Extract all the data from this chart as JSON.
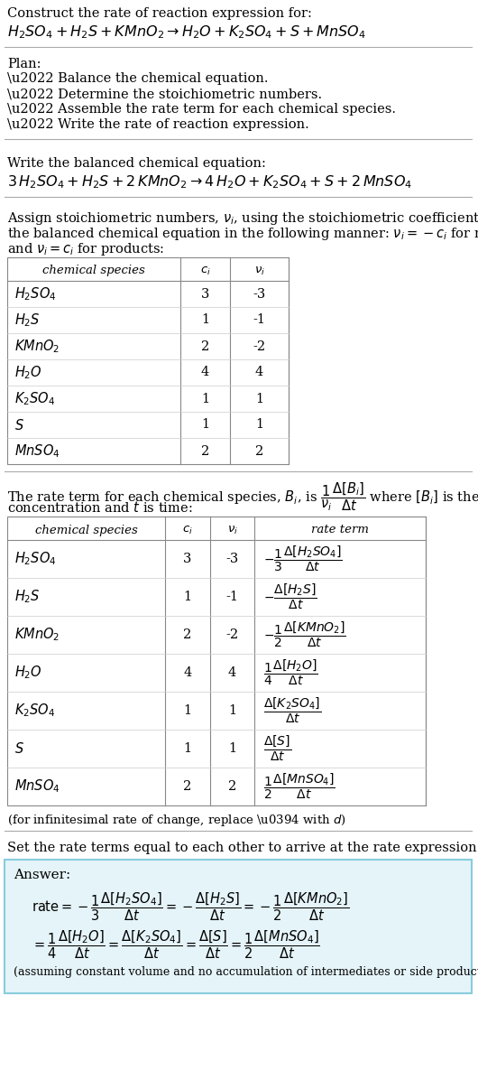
{
  "bg_color": "#ffffff",
  "font_family": "DejaVu Serif",
  "sections": {
    "title1": "Construct the rate of reaction expression for:",
    "eq_unbalanced": "$H_2SO_4 + H_2S + KMnO_2 \\rightarrow H_2O + K_2SO_4 + S + MnSO_4$",
    "plan_header": "Plan:",
    "plan_items": [
      "\\u2022 Balance the chemical equation.",
      "\\u2022 Determine the stoichiometric numbers.",
      "\\u2022 Assemble the rate term for each chemical species.",
      "\\u2022 Write the rate of reaction expression."
    ],
    "balanced_header": "Write the balanced chemical equation:",
    "eq_balanced": "$3\\,H_2SO_4 + H_2S + 2\\,KMnO_2 \\rightarrow 4\\,H_2O + K_2SO_4 + S + 2\\,MnSO_4$",
    "assign_text_line1": "Assign stoichiometric numbers, $\\nu_i$, using the stoichiometric coefficients, $c_i$, from",
    "assign_text_line2": "the balanced chemical equation in the following manner: $\\nu_i = -c_i$ for reactants",
    "assign_text_line3": "and $\\nu_i = c_i$ for products:",
    "rate_text_line1": "The rate term for each chemical species, $B_i$, is $\\dfrac{1}{\\nu_i}\\dfrac{\\Delta[B_i]}{\\Delta t}$ where $[B_i]$ is the amount",
    "rate_text_line2": "concentration and $t$ is time:",
    "infinitesimal": "(for infinitesimal rate of change, replace \\u0394 with $d$)",
    "set_header": "Set the rate terms equal to each other to arrive at the rate expression:",
    "answer_label": "Answer:",
    "answer_footnote": "(assuming constant volume and no accumulation of intermediates or side products)"
  },
  "table1": {
    "headers": [
      "chemical species",
      "$c_i$",
      "$\\nu_i$"
    ],
    "col_species": [
      "$H_2SO_4$",
      "$H_2S$",
      "$KMnO_2$",
      "$H_2O$",
      "$K_2SO_4$",
      "$S$",
      "$MnSO_4$"
    ],
    "col_ci": [
      "3",
      "1",
      "2",
      "4",
      "1",
      "1",
      "2"
    ],
    "col_ni": [
      "-3",
      "-1",
      "-2",
      "4",
      "1",
      "1",
      "2"
    ]
  },
  "table2": {
    "headers": [
      "chemical species",
      "$c_i$",
      "$\\nu_i$",
      "rate term"
    ],
    "col_species": [
      "$H_2SO_4$",
      "$H_2S$",
      "$KMnO_2$",
      "$H_2O$",
      "$K_2SO_4$",
      "$S$",
      "$MnSO_4$"
    ],
    "col_ci": [
      "3",
      "1",
      "2",
      "4",
      "1",
      "1",
      "2"
    ],
    "col_ni": [
      "-3",
      "-1",
      "-2",
      "4",
      "1",
      "1",
      "2"
    ],
    "col_rate": [
      "$-\\dfrac{1}{3}\\dfrac{\\Delta[H_2SO_4]}{\\Delta t}$",
      "$-\\dfrac{\\Delta[H_2S]}{\\Delta t}$",
      "$-\\dfrac{1}{2}\\dfrac{\\Delta[KMnO_2]}{\\Delta t}$",
      "$\\dfrac{1}{4}\\dfrac{\\Delta[H_2O]}{\\Delta t}$",
      "$\\dfrac{\\Delta[K_2SO_4]}{\\Delta t}$",
      "$\\dfrac{\\Delta[S]}{\\Delta t}$",
      "$\\dfrac{1}{2}\\dfrac{\\Delta[MnSO_4]}{\\Delta t}$"
    ]
  },
  "answer_line1": "$\\mathrm{rate} = -\\dfrac{1}{3}\\dfrac{\\Delta[H_2SO_4]}{\\Delta t} = -\\dfrac{\\Delta[H_2S]}{\\Delta t} = -\\dfrac{1}{2}\\dfrac{\\Delta[KMnO_2]}{\\Delta t}$",
  "answer_line2": "$= \\dfrac{1}{4}\\dfrac{\\Delta[H_2O]}{\\Delta t} = \\dfrac{\\Delta[K_2SO_4]}{\\Delta t} = \\dfrac{\\Delta[S]}{\\Delta t} = \\dfrac{1}{2}\\dfrac{\\Delta[MnSO_4]}{\\Delta t}$"
}
